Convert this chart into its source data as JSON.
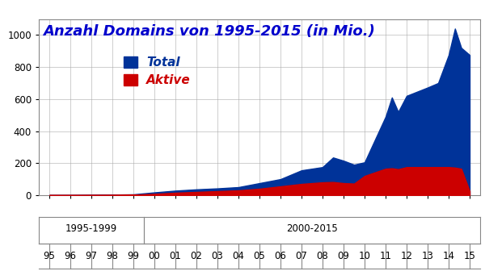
{
  "title": "Anzahl Domains von 1995-2015 (in Mio.)",
  "title_color": "#0000CC",
  "title_fontsize": 13,
  "total_color": "#003399",
  "aktive_color": "#CC0000",
  "background_color": "#FFFFFF",
  "grid_color": "#AAAAAA",
  "ylim": [
    0,
    1100
  ],
  "yticks": [
    0,
    200,
    400,
    600,
    800,
    1000
  ],
  "legend_total": "Total",
  "legend_aktive": "Aktive",
  "years": [
    1995,
    1996,
    1997,
    1998,
    1999,
    2000,
    2001,
    2002,
    2003,
    2004,
    2005,
    2006,
    2007,
    2008,
    2008.5,
    2009,
    2009.5,
    2010,
    2011,
    2011.3,
    2011.6,
    2012,
    2013,
    2013.5,
    2014,
    2014.3,
    2014.6,
    2015
  ],
  "total": [
    0.08,
    0.3,
    1.5,
    2.9,
    5.0,
    17,
    28,
    36,
    42,
    50,
    75,
    100,
    155,
    175,
    235,
    215,
    190,
    205,
    490,
    610,
    520,
    620,
    672,
    700,
    875,
    1040,
    920,
    875
  ],
  "aktive": [
    0.02,
    0.1,
    0.5,
    1.0,
    2.5,
    8,
    15,
    20,
    25,
    30,
    40,
    55,
    70,
    80,
    82,
    75,
    72,
    120,
    165,
    168,
    162,
    175,
    175,
    175,
    175,
    172,
    165,
    25
  ],
  "xtick_years": [
    1995,
    1996,
    1997,
    1998,
    1999,
    2000,
    2001,
    2002,
    2003,
    2004,
    2005,
    2006,
    2007,
    2008,
    2009,
    2010,
    2011,
    2012,
    2013,
    2014,
    2015
  ],
  "xtick_labels": [
    "95",
    "96",
    "97",
    "98",
    "99",
    "00",
    "01",
    "02",
    "03",
    "04",
    "05",
    "06",
    "07",
    "08",
    "09",
    "10",
    "11",
    "12",
    "13",
    "14",
    "15"
  ],
  "period_label_1": "1995-1999",
  "period_label_2": "2000-2015"
}
